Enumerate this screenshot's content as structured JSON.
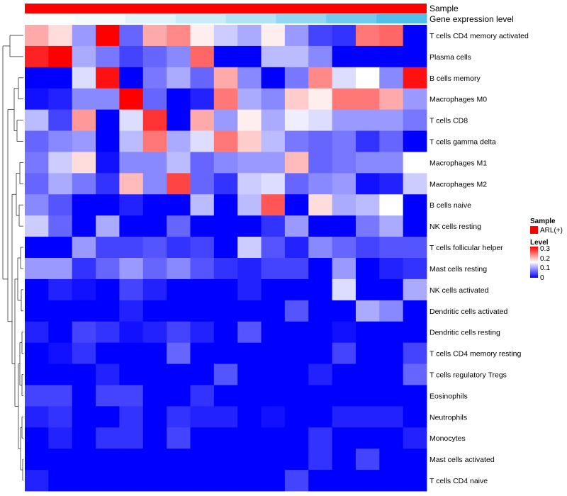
{
  "chart_data": {
    "type": "heatmap",
    "annotation_tracks": [
      "Sample",
      "Gene expression level"
    ],
    "sample_track": {
      "name": "Sample",
      "color": "#ff0000",
      "legend_entry": "ARL(+)"
    },
    "expression_track": {
      "name": "Gene expression level",
      "colors": [
        "#ffffff",
        "#f2fbff",
        "#e0f4fc",
        "#c9ecf9",
        "#b0e3f6",
        "#92d8f2",
        "#70cbee",
        "#52bfeb"
      ]
    },
    "color_scale": {
      "title": "Level",
      "low": "#0000ff",
      "mid": "#ffffff",
      "high": "#ff0000",
      "min": 0,
      "max": 0.3,
      "ticks": [
        "0.3",
        "0.2",
        "0.1",
        "0"
      ]
    },
    "legend_title": "Sample",
    "rows": [
      "T cells CD4 memory activated",
      "Plasma cells",
      "B cells memory",
      "Macrophages M0",
      "T cells CD8",
      "T cells gamma delta",
      "Macrophages M1",
      "Macrophages M2",
      "B cells naive",
      "NK cells resting",
      "T cells follicular helper",
      "Mast cells resting",
      "NK cells activated",
      "Dendritic cells activated",
      "Dendritic cells resting",
      "T cells CD4 memory resting",
      "T cells regulatory  Tregs",
      "Eosinophils",
      "Neutrophils",
      "Monocytes",
      "Mast cells activated",
      "T cells CD4 naive"
    ],
    "values": [
      [
        0.2,
        0.17,
        0.09,
        0.3,
        0.06,
        0.2,
        0.22,
        0.16,
        0.12,
        0.1,
        0.16,
        0.09,
        0.04,
        0.03,
        0.23,
        0.24,
        0.0
      ],
      [
        0.28,
        0.3,
        0.1,
        0.07,
        0.04,
        0.06,
        0.08,
        0.24,
        0.0,
        0.0,
        0.11,
        0.11,
        0.08,
        0.0,
        0.0,
        0.0,
        0.0
      ],
      [
        0.0,
        0.0,
        0.13,
        0.29,
        0.0,
        0.07,
        0.1,
        0.06,
        0.2,
        0.08,
        0.0,
        0.07,
        0.22,
        0.13,
        0.15,
        0.08,
        0.29
      ],
      [
        0.01,
        0.02,
        0.08,
        0.08,
        0.3,
        0.06,
        0.0,
        0.02,
        0.23,
        0.1,
        0.08,
        0.18,
        0.16,
        0.23,
        0.23,
        0.2,
        0.09
      ],
      [
        0.11,
        0.04,
        0.21,
        0.0,
        0.13,
        0.27,
        0.0,
        0.2,
        0.09,
        0.16,
        0.1,
        0.14,
        0.13,
        0.09,
        0.09,
        0.09,
        0.07
      ],
      [
        0.06,
        0.08,
        0.09,
        0.0,
        0.11,
        0.23,
        0.1,
        0.13,
        0.23,
        0.18,
        0.11,
        0.07,
        0.06,
        0.07,
        0.03,
        0.06,
        0.0
      ],
      [
        0.07,
        0.12,
        0.17,
        0.01,
        0.08,
        0.08,
        0.11,
        0.06,
        0.08,
        0.09,
        0.09,
        0.19,
        0.06,
        0.07,
        0.08,
        0.08,
        0.15
      ],
      [
        0.06,
        0.1,
        0.07,
        0.03,
        0.19,
        0.08,
        0.26,
        0.06,
        0.03,
        0.12,
        0.13,
        0.06,
        0.08,
        0.09,
        0.01,
        0.02,
        0.12
      ],
      [
        0.08,
        0.05,
        0.0,
        0.0,
        0.02,
        0.0,
        0.0,
        0.11,
        0.0,
        0.11,
        0.25,
        0.0,
        0.17,
        0.1,
        0.11,
        0.15,
        0.0
      ],
      [
        0.12,
        0.06,
        0.0,
        0.1,
        0.0,
        0.0,
        0.06,
        0.0,
        0.0,
        0.0,
        0.03,
        0.09,
        0.0,
        0.0,
        0.07,
        0.1,
        0.0
      ],
      [
        0.0,
        0.0,
        0.09,
        0.04,
        0.04,
        0.05,
        0.03,
        0.04,
        0.0,
        0.12,
        0.05,
        0.02,
        0.08,
        0.06,
        0.04,
        0.05,
        0.05
      ],
      [
        0.09,
        0.09,
        0.03,
        0.06,
        0.09,
        0.06,
        0.08,
        0.05,
        0.03,
        0.02,
        0.04,
        0.04,
        0.0,
        0.09,
        0.0,
        0.02,
        0.03
      ],
      [
        0.0,
        0.02,
        0.01,
        0.0,
        0.04,
        0.02,
        0.0,
        0.0,
        0.0,
        0.02,
        0.0,
        0.0,
        0.0,
        0.13,
        0.0,
        0.0,
        0.1
      ],
      [
        0.0,
        0.0,
        0.0,
        0.0,
        0.02,
        0.0,
        0.0,
        0.0,
        0.0,
        0.0,
        0.0,
        0.05,
        0.0,
        0.0,
        0.1,
        0.08,
        0.0
      ],
      [
        0.02,
        0.0,
        0.04,
        0.03,
        0.01,
        0.02,
        0.04,
        0.02,
        0.0,
        0.05,
        0.0,
        0.0,
        0.0,
        0.01,
        0.0,
        0.0,
        0.0
      ],
      [
        0.0,
        0.01,
        0.03,
        0.0,
        0.0,
        0.0,
        0.06,
        0.0,
        0.0,
        0.0,
        0.0,
        0.0,
        0.0,
        0.04,
        0.0,
        0.0,
        0.04
      ],
      [
        0.0,
        0.0,
        0.0,
        0.02,
        0.0,
        0.0,
        0.0,
        0.0,
        0.05,
        0.0,
        0.0,
        0.0,
        0.02,
        0.0,
        0.0,
        0.0,
        0.06
      ],
      [
        0.04,
        0.04,
        0.0,
        0.04,
        0.04,
        0.0,
        0.0,
        0.03,
        0.0,
        0.0,
        0.0,
        0.0,
        0.0,
        0.0,
        0.0,
        0.0,
        0.0
      ],
      [
        0.02,
        0.03,
        0.0,
        0.0,
        0.03,
        0.0,
        0.03,
        0.02,
        0.02,
        0.0,
        0.01,
        0.0,
        0.0,
        0.02,
        0.02,
        0.02,
        0.0
      ],
      [
        0.0,
        0.02,
        0.0,
        0.03,
        0.03,
        0.0,
        0.04,
        0.0,
        0.0,
        0.0,
        0.0,
        0.0,
        0.03,
        0.0,
        0.0,
        0.0,
        0.02
      ],
      [
        0.0,
        0.0,
        0.0,
        0.0,
        0.0,
        0.0,
        0.0,
        0.0,
        0.0,
        0.0,
        0.0,
        0.0,
        0.03,
        0.0,
        0.04,
        0.0,
        0.0
      ],
      [
        0.02,
        0.0,
        0.0,
        0.0,
        0.0,
        0.0,
        0.0,
        0.0,
        0.0,
        0.0,
        0.0,
        0.04,
        0.0,
        0.0,
        0.0,
        0.0,
        0.0
      ]
    ],
    "dendrogram": "row clustering tree (left)"
  }
}
